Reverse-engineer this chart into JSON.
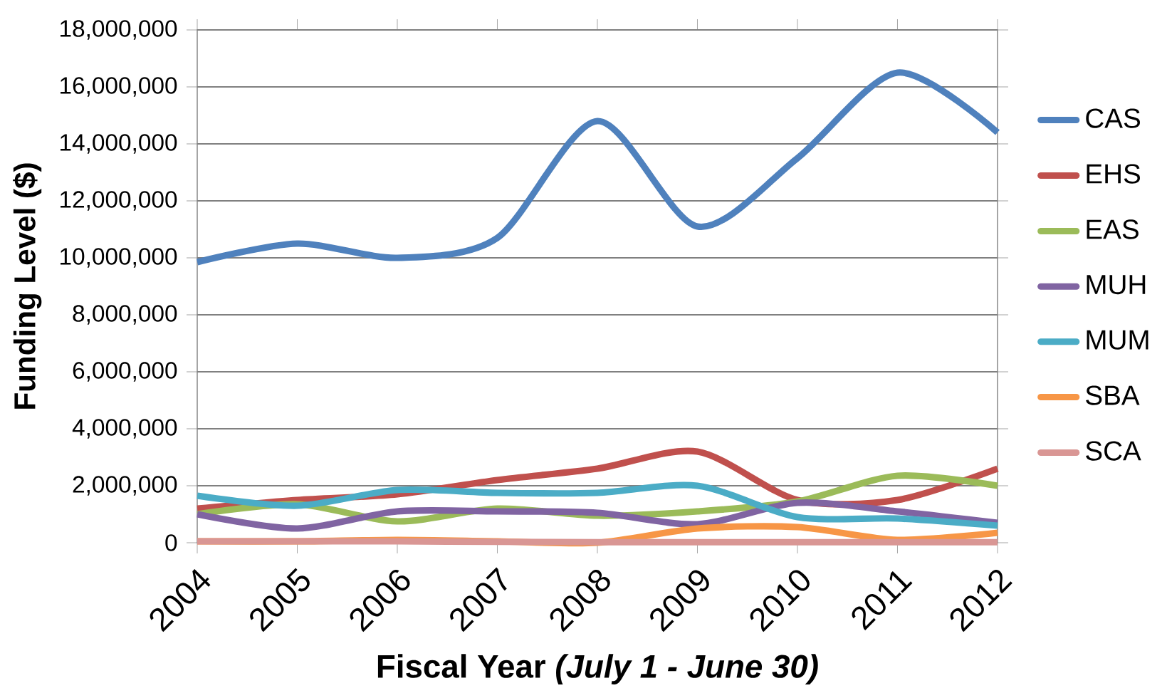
{
  "chart_data": {
    "type": "line",
    "xlabel": "Fiscal Year *(July 1 - June 30)*",
    "ylabel": "Funding Level ($)",
    "categories": [
      "2004",
      "2005",
      "2006",
      "2007",
      "2008",
      "2009",
      "2010",
      "2011",
      "2012"
    ],
    "series": [
      {
        "name": "CAS",
        "color": "#4f81bd",
        "values": [
          9850000,
          10500000,
          10000000,
          10700000,
          14800000,
          11100000,
          13500000,
          16500000,
          14400000
        ]
      },
      {
        "name": "EHS",
        "color": "#c0504d",
        "values": [
          1200000,
          1500000,
          1700000,
          2200000,
          2600000,
          3200000,
          1500000,
          1500000,
          2600000
        ]
      },
      {
        "name": "EAS",
        "color": "#9bbb59",
        "values": [
          1000000,
          1350000,
          750000,
          1200000,
          950000,
          1100000,
          1450000,
          2350000,
          2000000
        ]
      },
      {
        "name": "MUH",
        "color": "#8064a2",
        "values": [
          1000000,
          500000,
          1100000,
          1100000,
          1050000,
          650000,
          1400000,
          1100000,
          700000
        ]
      },
      {
        "name": "MUM",
        "color": "#4bacc6",
        "values": [
          1650000,
          1300000,
          1850000,
          1750000,
          1750000,
          2000000,
          900000,
          850000,
          600000
        ]
      },
      {
        "name": "SBA",
        "color": "#f79646",
        "values": [
          50000,
          50000,
          100000,
          50000,
          0,
          500000,
          550000,
          100000,
          350000
        ]
      },
      {
        "name": "SCA",
        "color": "#d99694",
        "values": [
          50000,
          50000,
          50000,
          30000,
          20000,
          20000,
          20000,
          20000,
          20000
        ]
      }
    ],
    "ylim": [
      0,
      18000000
    ],
    "yticks": [
      0,
      {
        "value": 2000000,
        "label": "2,000,000"
      },
      {
        "value": 4000000,
        "label": "4,000,000"
      },
      {
        "value": 6000000,
        "label": "6,000,000"
      },
      {
        "value": 8000000,
        "label": "8,000,000"
      },
      {
        "value": 10000000,
        "label": "10,000,000"
      },
      {
        "value": 12000000,
        "label": "12,000,000"
      },
      {
        "value": 14000000,
        "label": "14,000,000"
      },
      {
        "value": 16000000,
        "label": "16,000,000"
      },
      {
        "value": 18000000,
        "label": "18,000,000"
      }
    ],
    "grid": "y",
    "legend": "right",
    "marker": "none",
    "line_style": "solid"
  }
}
